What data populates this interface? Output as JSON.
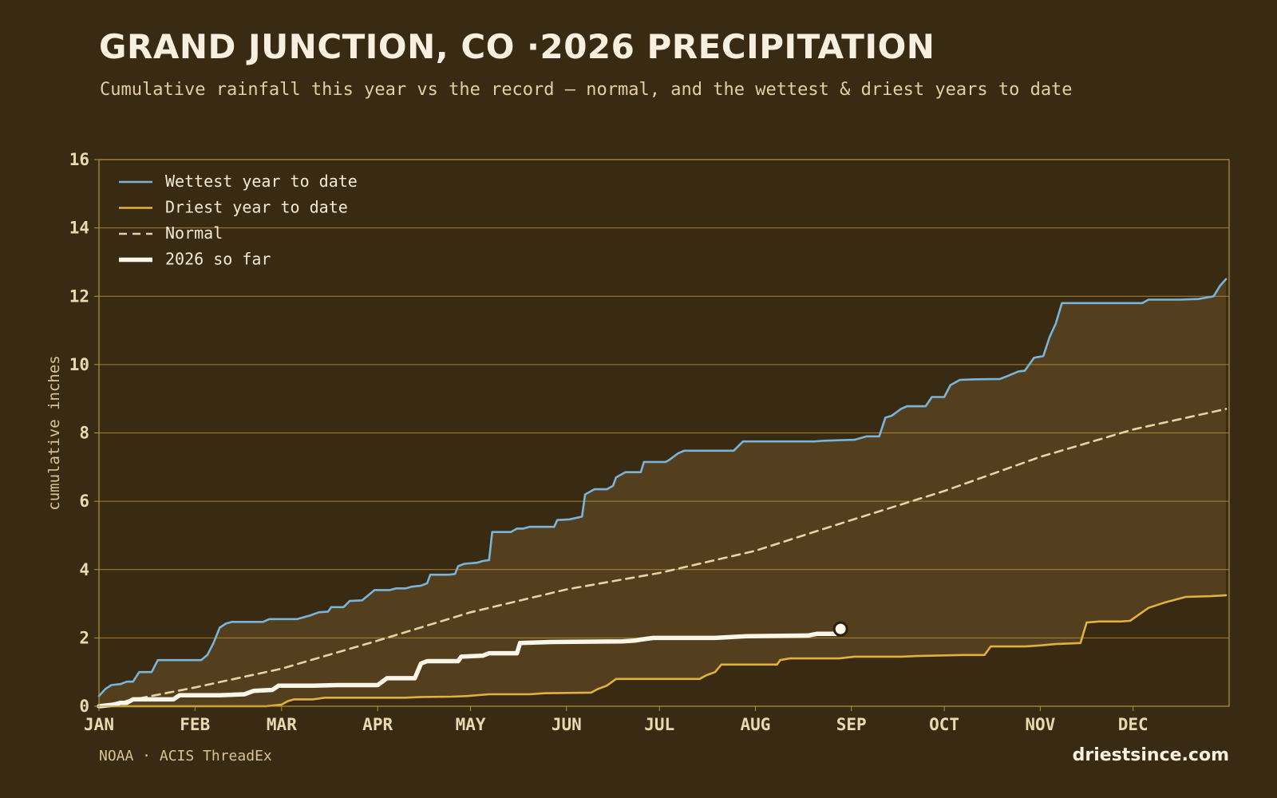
{
  "header": {
    "title": "GRAND JUNCTION, CO ·2026 PRECIPITATION",
    "subtitle": "Cumulative rainfall this year vs the record — normal, and the wettest & driest years to date"
  },
  "footer": {
    "source": "NOAA · ACIS ThreadEx",
    "brand": "driestsince.com"
  },
  "colors": {
    "background": "#382a13",
    "band_fill": "#54401e",
    "grid": "#b8923c",
    "wettest": "#7ab4d8",
    "driest": "#e0b040",
    "normal": "#e6d3a6",
    "current": "#fbf6ea"
  },
  "chart_data": {
    "type": "line",
    "ylabel": "cumulative inches",
    "xlabel": "",
    "ylim": [
      0,
      16
    ],
    "xlim_day": [
      1,
      366
    ],
    "yticks": [
      0,
      2,
      4,
      6,
      8,
      10,
      12,
      14,
      16
    ],
    "month_ticks": [
      "JAN",
      "FEB",
      "MAR",
      "APR",
      "MAY",
      "JUN",
      "JUL",
      "AUG",
      "SEP",
      "OCT",
      "NOV",
      "DEC"
    ],
    "grid": true,
    "legend_position": "top-left",
    "fill_between": [
      "Driest year to date",
      "Wettest year to date"
    ],
    "series": [
      {
        "name": "Wettest year to date",
        "style": "solid",
        "points": [
          [
            1,
            0.3
          ],
          [
            3,
            0.5
          ],
          [
            5,
            0.62
          ],
          [
            8,
            0.65
          ],
          [
            10,
            0.72
          ],
          [
            12,
            0.72
          ],
          [
            14,
            1.0
          ],
          [
            18,
            1.0
          ],
          [
            20,
            1.35
          ],
          [
            23,
            1.35
          ],
          [
            34,
            1.35
          ],
          [
            36,
            1.5
          ],
          [
            38,
            1.85
          ],
          [
            40,
            2.3
          ],
          [
            42,
            2.42
          ],
          [
            44,
            2.47
          ],
          [
            50,
            2.47
          ],
          [
            54,
            2.47
          ],
          [
            56,
            2.55
          ],
          [
            65,
            2.55
          ],
          [
            69,
            2.65
          ],
          [
            72,
            2.75
          ],
          [
            75,
            2.77
          ],
          [
            76,
            2.9
          ],
          [
            80,
            2.9
          ],
          [
            82,
            3.08
          ],
          [
            86,
            3.1
          ],
          [
            88,
            3.25
          ],
          [
            90,
            3.4
          ],
          [
            95,
            3.4
          ],
          [
            97,
            3.45
          ],
          [
            100,
            3.45
          ],
          [
            102,
            3.5
          ],
          [
            105,
            3.53
          ],
          [
            107,
            3.6
          ],
          [
            108,
            3.85
          ],
          [
            114,
            3.85
          ],
          [
            116,
            3.87
          ],
          [
            117,
            4.1
          ],
          [
            119,
            4.17
          ],
          [
            123,
            4.2
          ],
          [
            125,
            4.25
          ],
          [
            127,
            4.28
          ],
          [
            128,
            5.1
          ],
          [
            134,
            5.1
          ],
          [
            136,
            5.2
          ],
          [
            138,
            5.2
          ],
          [
            140,
            5.25
          ],
          [
            148,
            5.25
          ],
          [
            149,
            5.45
          ],
          [
            153,
            5.47
          ],
          [
            157,
            5.55
          ],
          [
            158,
            6.2
          ],
          [
            161,
            6.35
          ],
          [
            165,
            6.35
          ],
          [
            167,
            6.45
          ],
          [
            168,
            6.7
          ],
          [
            171,
            6.85
          ],
          [
            176,
            6.85
          ],
          [
            177,
            7.15
          ],
          [
            184,
            7.15
          ],
          [
            185,
            7.2
          ],
          [
            188,
            7.4
          ],
          [
            190,
            7.48
          ],
          [
            206,
            7.48
          ],
          [
            209,
            7.75
          ],
          [
            215,
            7.75
          ],
          [
            232,
            7.75
          ],
          [
            235,
            7.77
          ],
          [
            245,
            7.8
          ],
          [
            249,
            7.9
          ],
          [
            253,
            7.9
          ],
          [
            255,
            8.45
          ],
          [
            257,
            8.5
          ],
          [
            260,
            8.7
          ],
          [
            262,
            8.78
          ],
          [
            268,
            8.78
          ],
          [
            270,
            9.05
          ],
          [
            274,
            9.05
          ],
          [
            276,
            9.4
          ],
          [
            279,
            9.55
          ],
          [
            284,
            9.57
          ],
          [
            292,
            9.58
          ],
          [
            294,
            9.65
          ],
          [
            298,
            9.8
          ],
          [
            300,
            9.82
          ],
          [
            303,
            10.2
          ],
          [
            306,
            10.25
          ],
          [
            308,
            10.8
          ],
          [
            310,
            11.2
          ],
          [
            312,
            11.8
          ],
          [
            320,
            11.8
          ],
          [
            338,
            11.8
          ],
          [
            340,
            11.9
          ],
          [
            350,
            11.9
          ],
          [
            356,
            11.92
          ],
          [
            358,
            11.95
          ],
          [
            361,
            12.0
          ],
          [
            363,
            12.3
          ],
          [
            365,
            12.5
          ]
        ]
      },
      {
        "name": "Driest year to date",
        "style": "solid",
        "points": [
          [
            1,
            0.0
          ],
          [
            55,
            0.0
          ],
          [
            60,
            0.05
          ],
          [
            62,
            0.15
          ],
          [
            64,
            0.2
          ],
          [
            70,
            0.2
          ],
          [
            74,
            0.25
          ],
          [
            100,
            0.25
          ],
          [
            105,
            0.27
          ],
          [
            115,
            0.28
          ],
          [
            120,
            0.3
          ],
          [
            127,
            0.35
          ],
          [
            140,
            0.35
          ],
          [
            145,
            0.38
          ],
          [
            160,
            0.4
          ],
          [
            162,
            0.5
          ],
          [
            165,
            0.6
          ],
          [
            168,
            0.8
          ],
          [
            175,
            0.8
          ],
          [
            195,
            0.8
          ],
          [
            197,
            0.9
          ],
          [
            200,
            1.0
          ],
          [
            202,
            1.22
          ],
          [
            215,
            1.22
          ],
          [
            220,
            1.22
          ],
          [
            221,
            1.35
          ],
          [
            224,
            1.4
          ],
          [
            240,
            1.4
          ],
          [
            245,
            1.45
          ],
          [
            260,
            1.45
          ],
          [
            265,
            1.47
          ],
          [
            280,
            1.5
          ],
          [
            287,
            1.5
          ],
          [
            289,
            1.75
          ],
          [
            300,
            1.75
          ],
          [
            305,
            1.78
          ],
          [
            310,
            1.82
          ],
          [
            318,
            1.85
          ],
          [
            320,
            2.45
          ],
          [
            324,
            2.48
          ],
          [
            331,
            2.48
          ],
          [
            334,
            2.5
          ],
          [
            340,
            2.88
          ],
          [
            345,
            3.03
          ],
          [
            352,
            3.2
          ],
          [
            360,
            3.22
          ],
          [
            365,
            3.25
          ]
        ]
      },
      {
        "name": "Normal",
        "style": "dashed",
        "points": [
          [
            1,
            0.0
          ],
          [
            32,
            0.55
          ],
          [
            60,
            1.1
          ],
          [
            91,
            1.92
          ],
          [
            121,
            2.75
          ],
          [
            152,
            3.42
          ],
          [
            182,
            3.9
          ],
          [
            213,
            4.55
          ],
          [
            244,
            5.45
          ],
          [
            274,
            6.3
          ],
          [
            305,
            7.3
          ],
          [
            335,
            8.1
          ],
          [
            365,
            8.7
          ]
        ]
      },
      {
        "name": "2026 so far",
        "style": "bold",
        "points": [
          [
            1,
            0.0
          ],
          [
            6,
            0.05
          ],
          [
            8,
            0.1
          ],
          [
            10,
            0.1
          ],
          [
            12,
            0.2
          ],
          [
            17,
            0.2
          ],
          [
            25,
            0.2
          ],
          [
            27,
            0.32
          ],
          [
            40,
            0.32
          ],
          [
            48,
            0.35
          ],
          [
            51,
            0.45
          ],
          [
            57,
            0.48
          ],
          [
            59,
            0.6
          ],
          [
            70,
            0.6
          ],
          [
            78,
            0.62
          ],
          [
            91,
            0.62
          ],
          [
            94,
            0.82
          ],
          [
            103,
            0.82
          ],
          [
            105,
            1.25
          ],
          [
            107,
            1.32
          ],
          [
            117,
            1.32
          ],
          [
            118,
            1.45
          ],
          [
            125,
            1.48
          ],
          [
            127,
            1.55
          ],
          [
            136,
            1.55
          ],
          [
            137,
            1.85
          ],
          [
            147,
            1.88
          ],
          [
            170,
            1.9
          ],
          [
            174,
            1.92
          ],
          [
            176,
            1.95
          ],
          [
            180,
            2.0
          ],
          [
            200,
            2.0
          ],
          [
            210,
            2.05
          ],
          [
            230,
            2.07
          ],
          [
            233,
            2.12
          ],
          [
            239,
            2.12
          ],
          [
            240,
            2.17
          ]
        ]
      }
    ]
  }
}
